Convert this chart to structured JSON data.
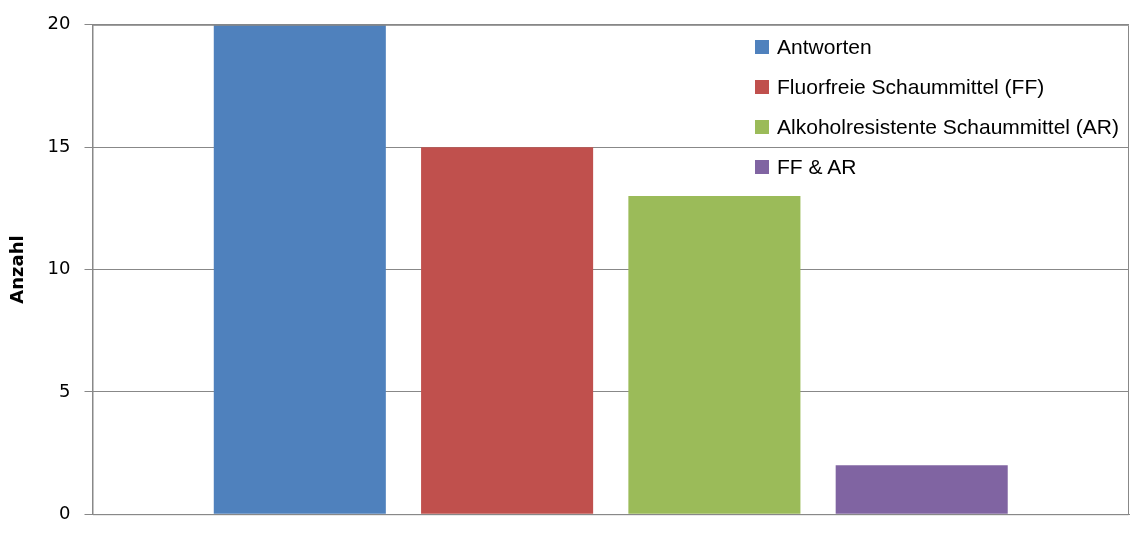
{
  "chart_data": {
    "type": "bar",
    "ylabel": "Anzahl",
    "categories": [
      null
    ],
    "series": [
      {
        "name": "Antworten",
        "color": "#4f81bd",
        "values": [
          20
        ]
      },
      {
        "name": "Fluorfreie Schaummittel (FF)",
        "color": "#c0504d",
        "values": [
          15
        ]
      },
      {
        "name": "Alkoholresistente Schaummittel (AR)",
        "color": "#9bbb59",
        "values": [
          13
        ]
      },
      {
        "name": "FF & AR",
        "color": "#8064a2",
        "values": [
          2
        ]
      }
    ],
    "ylim": [
      0,
      20
    ],
    "yticks": [
      0,
      5,
      10,
      15,
      20
    ],
    "grid": "y",
    "legend": "top right"
  }
}
